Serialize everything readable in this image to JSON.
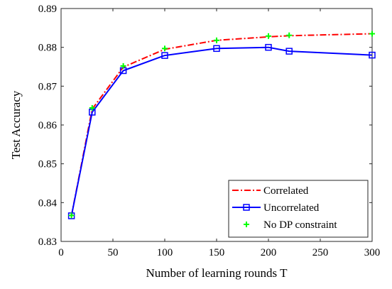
{
  "chart_data": {
    "type": "line",
    "xlabel": "Number of learning rounds T",
    "ylabel": "Test Accuracy",
    "xlim": [
      0,
      300
    ],
    "ylim": [
      0.83,
      0.89
    ],
    "xticks": [
      "0",
      "50",
      "100",
      "150",
      "200",
      "250",
      "300"
    ],
    "yticks": [
      "0.83",
      "0.84",
      "0.85",
      "0.86",
      "0.87",
      "0.88",
      "0.89"
    ],
    "grid": false,
    "legend_position": "bottom-right",
    "series": [
      {
        "name": "Correlated",
        "color": "#ff0000",
        "line": "dash-dot",
        "marker": "none",
        "x": [
          10,
          30,
          60,
          100,
          150,
          200,
          220,
          300
        ],
        "y": [
          0.8366,
          0.8641,
          0.8749,
          0.8795,
          0.8818,
          0.8827,
          0.883,
          0.8835
        ]
      },
      {
        "name": "Uncorrelated",
        "color": "#0000ff",
        "line": "solid",
        "marker": "square",
        "x": [
          10,
          30,
          60,
          100,
          150,
          200,
          220,
          300
        ],
        "y": [
          0.8366,
          0.8633,
          0.874,
          0.8779,
          0.8797,
          0.88,
          0.879,
          0.878
        ]
      },
      {
        "name": "No DP constraint",
        "color": "#00ff00",
        "line": "none",
        "marker": "plus",
        "x": [
          10,
          30,
          60,
          100,
          150,
          200,
          220,
          300
        ],
        "y": [
          0.8367,
          0.8644,
          0.8752,
          0.8797,
          0.8818,
          0.8829,
          0.8831,
          0.8835
        ]
      }
    ]
  }
}
